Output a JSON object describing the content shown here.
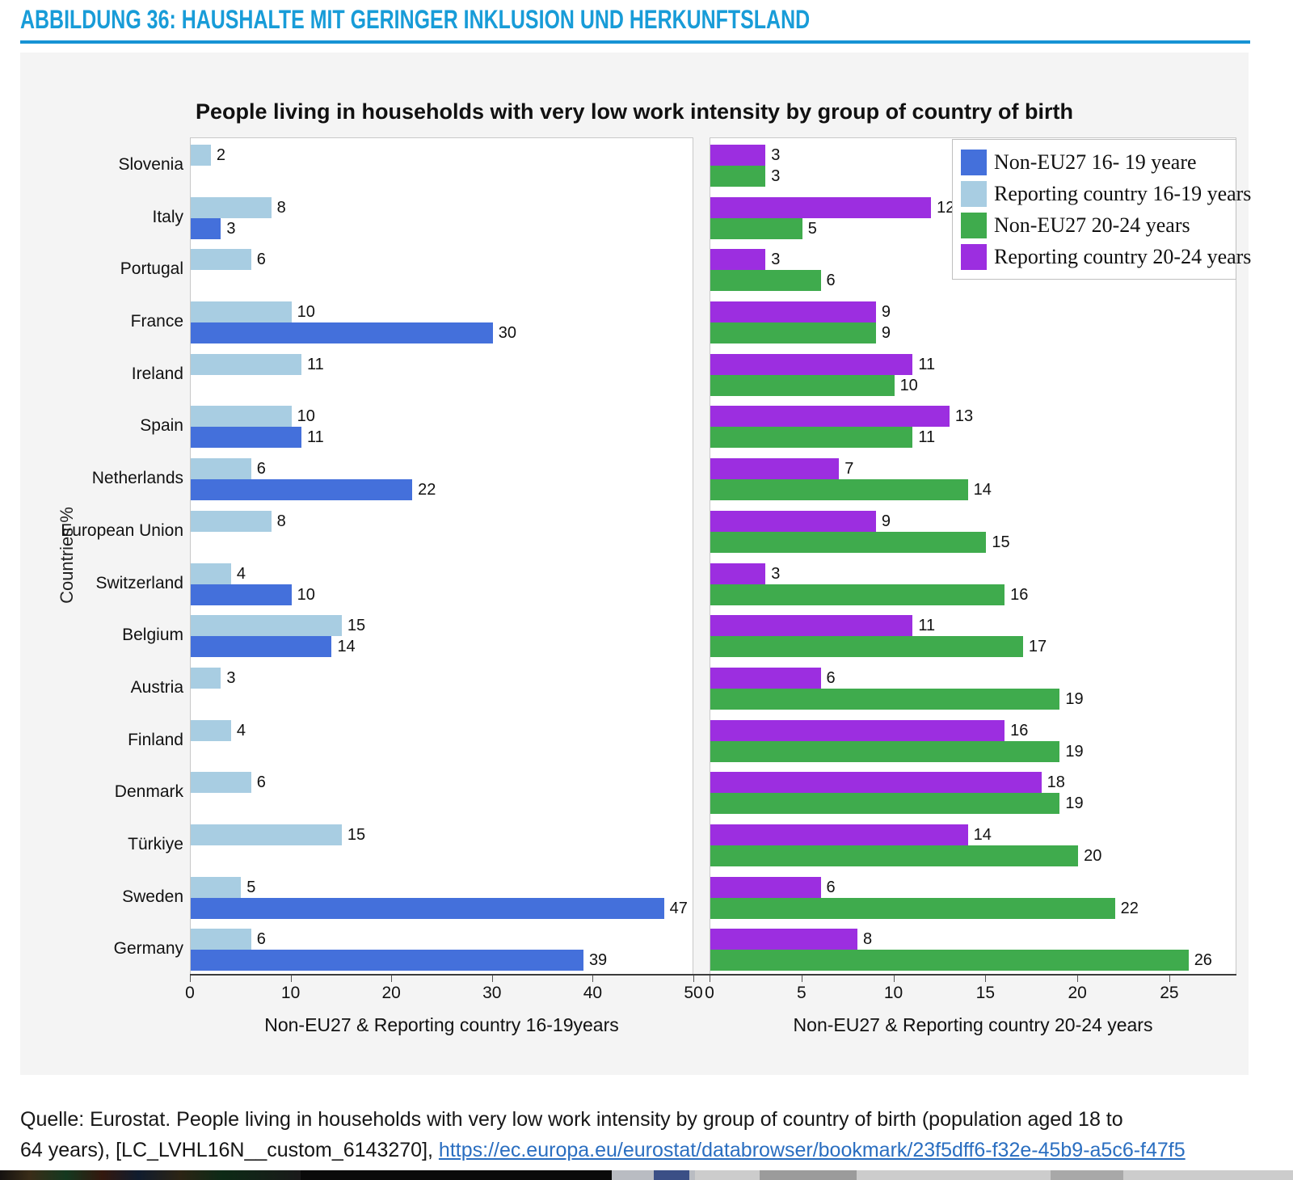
{
  "heading": {
    "title": "ABBILDUNG 36: HAUSHALTE MIT GERINGER INKLUSION UND HERKUNFTSLAND"
  },
  "colors": {
    "royal_blue": "#4470db",
    "light_blue": "#a8cde2",
    "green": "#3fab4d",
    "purple": "#9c2ee0",
    "heading_blue": "#189cd8",
    "link_blue": "#2a6ec0"
  },
  "chart_data": {
    "type": "bar",
    "orientation": "horizontal",
    "title": "People living in households with very low work intensity by group of country of birth",
    "ylabel": "Countries %",
    "grid": false,
    "legend_position": "top-right",
    "categories_top_to_bottom": [
      "Slovenia",
      "Italy",
      "Portugal",
      "France",
      "Ireland",
      "Spain",
      "Netherlands",
      "European Union",
      "Switzerland",
      "Belgium",
      "Austria",
      "Finland",
      "Denmark",
      "Türkiye",
      "Sweden",
      "Germany"
    ],
    "panels": [
      {
        "xlabel": "Non-EU27 & Reporting country 16-19years",
        "x_ticks": [
          0,
          10,
          20,
          30,
          40,
          50
        ],
        "x_max": 50,
        "series": [
          {
            "name": "Reporting country 16-19 years",
            "color_key": "light_blue",
            "row": "top",
            "values": [
              2,
              8,
              6,
              10,
              11,
              10,
              6,
              8,
              4,
              15,
              3,
              4,
              6,
              15,
              5,
              6
            ]
          },
          {
            "name": "Non-EU27 16- 19 yeare",
            "color_key": "royal_blue",
            "row": "bottom",
            "values": [
              null,
              3,
              null,
              30,
              null,
              11,
              22,
              null,
              10,
              14,
              null,
              null,
              null,
              null,
              47,
              39
            ]
          }
        ]
      },
      {
        "xlabel": "Non-EU27 & Reporting country 20-24 years",
        "x_ticks": [
          0,
          5,
          10,
          15,
          20,
          25
        ],
        "x_max": 28.65,
        "series": [
          {
            "name": "Reporting country 20-24 years",
            "color_key": "purple",
            "row": "top",
            "values": [
              3,
              12,
              3,
              9,
              11,
              13,
              7,
              9,
              3,
              11,
              6,
              16,
              18,
              14,
              6,
              8
            ]
          },
          {
            "name": "Non-EU27 20-24 years",
            "color_key": "green",
            "row": "bottom",
            "values": [
              3,
              5,
              6,
              9,
              10,
              11,
              14,
              15,
              16,
              17,
              19,
              19,
              19,
              20,
              22,
              26
            ]
          }
        ]
      }
    ],
    "legend": [
      {
        "label": "Non-EU27 16- 19 yeare",
        "color_key": "royal_blue"
      },
      {
        "label": "Reporting country 16-19 years",
        "color_key": "light_blue"
      },
      {
        "label": "Non-EU27 20-24 years",
        "color_key": "green"
      },
      {
        "label": "Reporting country 20-24 years",
        "color_key": "purple"
      }
    ]
  },
  "caption": {
    "line1": "Quelle: Eurostat. People living in households with very low work intensity by group of country of birth (population aged 18 to",
    "line2_prefix": "64 years), [LC_LVHL16N__custom_6143270], ",
    "link_text": "https://ec.europa.eu/eurostat/databrowser/bookmark/23f5dff6-f32e-45b9-a5c6-f47f5"
  }
}
